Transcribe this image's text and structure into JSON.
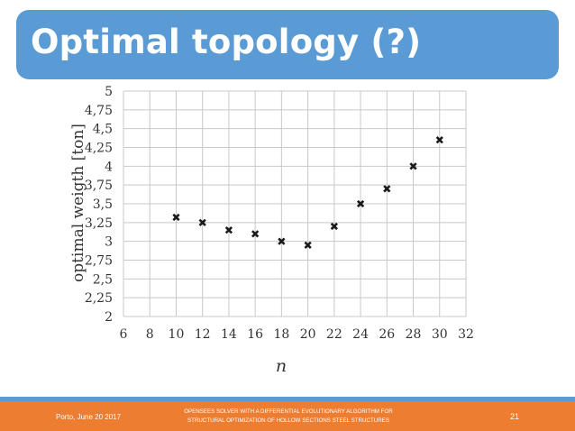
{
  "slide": {
    "title": "Optimal topology (?)",
    "footer_left": "Porto, June 20 2017",
    "footer_center_line1": "OPENSEES SOLVER WITH A DIFFERENTIAL EVOLUTIONARY ALGORITHM FOR",
    "footer_center_line2": "STRUCTURAL OPTIMIZATION OF HOLLOW SECTIONS STEEL STRUCTURES",
    "page_number": "21"
  },
  "colors": {
    "header": "#5b9bd5",
    "footer": "#ed7d31",
    "grid": "#c8c8c8",
    "marker": "#1a1a1a"
  },
  "chart_data": {
    "type": "scatter",
    "xlabel": "n",
    "ylabel": "optimal weigth [ton]",
    "xlim": [
      6,
      32
    ],
    "ylim": [
      2,
      5
    ],
    "grid": true,
    "xticks": [
      "6",
      "8",
      "10",
      "12",
      "14",
      "16",
      "18",
      "20",
      "22",
      "24",
      "26",
      "28",
      "30",
      "32"
    ],
    "yticks": [
      "2",
      "2,25",
      "2,5",
      "2,75",
      "3",
      "3,25",
      "3,5",
      "3,75",
      "4",
      "4,25",
      "4,5",
      "4,75",
      "5"
    ],
    "x": [
      10,
      12,
      14,
      16,
      18,
      20,
      22,
      24,
      26,
      28,
      30
    ],
    "y": [
      3.32,
      3.25,
      3.15,
      3.1,
      3.0,
      2.95,
      3.2,
      3.5,
      3.7,
      4.0,
      4.35
    ]
  }
}
